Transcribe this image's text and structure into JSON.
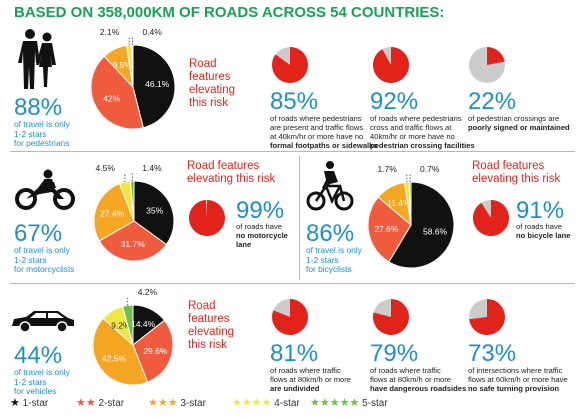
{
  "title": "BASED ON 358,000KM OF ROADS ACROSS 54 COUNTRIES:",
  "colors": {
    "1-star": "#111111",
    "2-star": "#ef5b3c",
    "3-star": "#f5a623",
    "4-star": "#f2e646",
    "5-star": "#6cbf4b",
    "red": "#e2231a",
    "grey": "#cccccc",
    "blue": "#1e8fc9"
  },
  "pedestrians": {
    "big": "88%",
    "caption": [
      "of travel is only",
      "1-2 stars",
      "for pedestrians"
    ],
    "features": [
      "Road",
      "features",
      "elevating",
      "this risk"
    ],
    "stats": [
      {
        "big": "85%",
        "lines": [
          "of roads where pedestrians",
          "are present and traffic flows",
          "at 40km/hr or more have no"
        ],
        "bold": [
          "formal footpaths or sidewalks"
        ],
        "value": 85
      },
      {
        "big": "92%",
        "lines": [
          "of roads where pedestrians",
          "cross and traffic flows at",
          "40km/hr or more have no"
        ],
        "bold": [
          "pedestrian crossing facilities"
        ],
        "value": 92
      },
      {
        "big": "22%",
        "lines": [
          "of pedestrian crossings are"
        ],
        "bold": [
          "poorly signed or maintained"
        ],
        "value": 22
      }
    ]
  },
  "motorcyclists": {
    "big": "67%",
    "caption": [
      "of travel is only",
      "1-2 stars",
      "for motorcyclists"
    ],
    "features": [
      "Road features",
      "elevating this risk"
    ],
    "stats": [
      {
        "big": "99%",
        "lines": [
          "of roads have"
        ],
        "bold": [
          "no motorcycle",
          "lane"
        ],
        "value": 99
      }
    ]
  },
  "bicyclists": {
    "big": "86%",
    "caption": [
      "of travel is only",
      "1-2 stars",
      "for bicyclists"
    ],
    "features": [
      "Road features",
      "elevating this risk"
    ],
    "stats": [
      {
        "big": "91%",
        "lines": [
          "of roads have"
        ],
        "bold": [
          "no bicycle lane"
        ],
        "value": 91
      }
    ]
  },
  "vehicles": {
    "big": "44%",
    "caption": [
      "of travel is only",
      "1-2 stars",
      "for vehicles"
    ],
    "features": [
      "Road",
      "features",
      "elevating",
      "this risk"
    ],
    "stats": [
      {
        "big": "81%",
        "lines": [
          "of roads where traffic",
          "flows at 80km/h or more"
        ],
        "bold": [
          "are undivided"
        ],
        "value": 81
      },
      {
        "big": "79%",
        "lines": [
          "of roads where traffic",
          "flows at 80km/h or more"
        ],
        "bold": [
          "have dangerous roadsides"
        ],
        "value": 79
      },
      {
        "big": "73%",
        "lines": [
          "of intersections where traffic",
          "flows at 60km/h or more have"
        ],
        "bold": [
          "no safe turning provision"
        ],
        "value": 73
      }
    ]
  },
  "legend": [
    {
      "label": "1-star",
      "stars": "★",
      "color": "#111111"
    },
    {
      "label": "2-star",
      "stars": "★★",
      "color": "#ef5b3c"
    },
    {
      "label": "3-star",
      "stars": "★★★",
      "color": "#f5a623"
    },
    {
      "label": "4-star",
      "stars": "★★★★",
      "color": "#f2e646"
    },
    {
      "label": "5-star",
      "stars": "★★★★★",
      "color": "#6cbf4b"
    }
  ],
  "chart_data": [
    {
      "type": "pie",
      "name": "pedestrians",
      "slices": [
        {
          "category": "1-star",
          "value": 46.1,
          "label": "46.1%"
        },
        {
          "category": "2-star",
          "value": 42,
          "label": "42%"
        },
        {
          "category": "3-star",
          "value": 9.5,
          "label": "9.5%"
        },
        {
          "category": "4-star",
          "value": 2.1,
          "label": "2.1%"
        },
        {
          "category": "5-star",
          "value": 0.4,
          "label": "0.4%"
        }
      ]
    },
    {
      "type": "pie",
      "name": "motorcyclists",
      "slices": [
        {
          "category": "1-star",
          "value": 35,
          "label": "35%"
        },
        {
          "category": "2-star",
          "value": 31.7,
          "label": "31.7%"
        },
        {
          "category": "3-star",
          "value": 27.4,
          "label": "27.4%"
        },
        {
          "category": "4-star",
          "value": 4.5,
          "label": "4.5%"
        },
        {
          "category": "5-star",
          "value": 1.4,
          "label": "1.4%"
        }
      ]
    },
    {
      "type": "pie",
      "name": "bicyclists",
      "slices": [
        {
          "category": "1-star",
          "value": 58.6,
          "label": "58.6%"
        },
        {
          "category": "2-star",
          "value": 27.6,
          "label": "27.6%"
        },
        {
          "category": "3-star",
          "value": 11.4,
          "label": "11.4%"
        },
        {
          "category": "4-star",
          "value": 1.7,
          "label": "1.7%"
        },
        {
          "category": "5-star",
          "value": 0.7,
          "label": "0.7%"
        }
      ]
    },
    {
      "type": "pie",
      "name": "vehicles",
      "slices": [
        {
          "category": "1-star",
          "value": 14.4,
          "label": "14.4%"
        },
        {
          "category": "2-star",
          "value": 29.6,
          "label": "29.6%"
        },
        {
          "category": "3-star",
          "value": 42.5,
          "label": "42.5%"
        },
        {
          "category": "4-star",
          "value": 9.2,
          "label": "9.2%"
        },
        {
          "category": "5-star",
          "value": 4.2,
          "label": "4.2%"
        }
      ]
    }
  ]
}
